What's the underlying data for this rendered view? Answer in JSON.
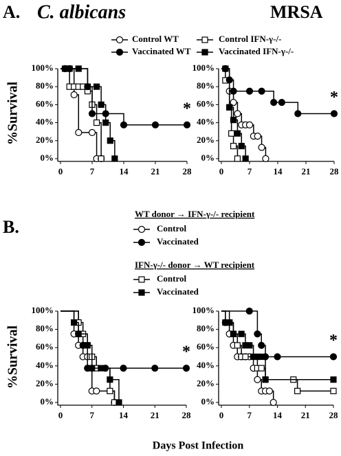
{
  "panels": [
    "A.",
    "B."
  ],
  "shared_xlabel": "Days Post Infection",
  "chart_data": [
    {
      "type": "step",
      "title": "C. albicans",
      "ylabel": "%Survival",
      "annotation": "*",
      "xlim": [
        0,
        28
      ],
      "xticks": [
        0,
        7,
        14,
        21,
        28
      ],
      "ylim": [
        0,
        100
      ],
      "yticks": [
        {
          "value": 0,
          "label": "0%"
        },
        {
          "value": 20,
          "label": "20%"
        },
        {
          "value": 40,
          "label": "40%"
        },
        {
          "value": 60,
          "label": "60%"
        },
        {
          "value": 80,
          "label": "80%"
        },
        {
          "value": 100,
          "label": "100%"
        }
      ],
      "series": [
        {
          "name": "Control WT",
          "color": "black",
          "marker": "circle",
          "filled": false,
          "x": [
            0,
            1,
            2,
            3,
            4,
            7,
            8,
            9
          ],
          "values": [
            100,
            100,
            100,
            71,
            29,
            29,
            0,
            0
          ]
        },
        {
          "name": "Control IFN-γ-/-",
          "color": "black",
          "marker": "square",
          "filled": false,
          "x": [
            0,
            1,
            2,
            3,
            4,
            5,
            6,
            7,
            8,
            9
          ],
          "values": [
            100,
            100,
            80,
            80,
            80,
            80,
            75,
            60,
            40,
            0
          ]
        },
        {
          "name": "Vaccinated WT",
          "color": "black",
          "marker": "circle",
          "filled": true,
          "x": [
            0,
            1,
            2,
            6,
            7,
            10,
            14,
            21,
            28
          ],
          "values": [
            100,
            100,
            100,
            80,
            50,
            50,
            37.5,
            37.5,
            37.5
          ]
        },
        {
          "name": "Vaccinated IFN-γ-/-",
          "color": "black",
          "marker": "square",
          "filled": true,
          "x": [
            0,
            2,
            4,
            6,
            8,
            9,
            10,
            11,
            12
          ],
          "values": [
            100,
            100,
            100,
            80,
            80,
            60,
            40,
            20,
            0
          ]
        }
      ]
    },
    {
      "type": "step",
      "title": "MRSA",
      "annotation": "*",
      "xlim": [
        0,
        28
      ],
      "xticks": [
        0,
        7,
        14,
        21,
        28
      ],
      "ylim": [
        0,
        100
      ],
      "yticks": [
        {
          "value": 0,
          "label": "0%"
        },
        {
          "value": 20,
          "label": "20%"
        },
        {
          "value": 40,
          "label": "40%"
        },
        {
          "value": 60,
          "label": "60%"
        },
        {
          "value": 80,
          "label": "80%"
        },
        {
          "value": 100,
          "label": "100%"
        }
      ],
      "series": [
        {
          "name": "Control WT",
          "color": "black",
          "marker": "circle",
          "filled": false,
          "x": [
            0,
            1,
            2,
            3,
            4,
            5,
            6,
            7,
            8,
            9,
            10,
            11
          ],
          "values": [
            100,
            100,
            75,
            62.5,
            50,
            37.5,
            37.5,
            37.5,
            25,
            25,
            12.5,
            0
          ]
        },
        {
          "name": "Control IFN-γ-/-",
          "color": "black",
          "marker": "square",
          "filled": false,
          "x": [
            0,
            1,
            2,
            2.5,
            3,
            4
          ],
          "values": [
            100,
            87,
            57,
            28,
            14,
            0
          ]
        },
        {
          "name": "Vaccinated WT",
          "color": "black",
          "marker": "circle",
          "filled": true,
          "x": [
            0,
            1,
            2,
            3,
            7,
            10,
            13,
            15,
            19,
            28
          ],
          "values": [
            100,
            100,
            87.5,
            75,
            75,
            75,
            62.5,
            62.5,
            50,
            50
          ]
        },
        {
          "name": "Vaccinated IFN-γ-/-",
          "color": "black",
          "marker": "square",
          "filled": true,
          "x": [
            0,
            1,
            2,
            3,
            4,
            5,
            6
          ],
          "values": [
            100,
            100,
            57,
            43,
            28,
            14,
            0
          ]
        }
      ]
    },
    {
      "type": "step",
      "ylabel": "%Survival",
      "annotation": "*",
      "legend_groups": [
        "WT donor → IFN-γ-/- recipient",
        "IFN-γ-/- donor → WT recipient"
      ],
      "xlim": [
        0,
        28
      ],
      "xticks": [
        0,
        7,
        14,
        21,
        28
      ],
      "ylim": [
        0,
        100
      ],
      "yticks": [
        {
          "value": 0,
          "label": "0%"
        },
        {
          "value": 20,
          "label": "20%"
        },
        {
          "value": 40,
          "label": "40%"
        },
        {
          "value": 60,
          "label": "60%"
        },
        {
          "value": 80,
          "label": "80%"
        },
        {
          "value": 100,
          "label": "100%"
        }
      ],
      "series": [
        {
          "name": "Control",
          "color": "black",
          "marker": "circle",
          "filled": false,
          "x": [
            0,
            3,
            4,
            5,
            6,
            7,
            8,
            12
          ],
          "values": [
            100,
            75,
            62.5,
            50,
            50,
            12.5,
            12.5,
            0
          ]
        },
        {
          "name": "Vaccinated",
          "color": "black",
          "marker": "circle",
          "filled": true,
          "x": [
            0,
            4,
            5,
            6,
            7,
            10,
            14,
            21,
            28
          ],
          "values": [
            100,
            75,
            62.5,
            37.5,
            37.5,
            37.5,
            37.5,
            37.5,
            37.5
          ]
        },
        {
          "name": "Control",
          "color": "black",
          "marker": "square",
          "filled": false,
          "x": [
            0,
            4,
            5,
            6,
            7,
            8,
            11,
            12
          ],
          "values": [
            100,
            87.5,
            75,
            62.5,
            50,
            37.5,
            12.5,
            0
          ]
        },
        {
          "name": "Vaccinated",
          "color": "black",
          "marker": "square",
          "filled": true,
          "x": [
            0,
            3,
            4,
            6,
            7,
            9,
            11,
            13
          ],
          "values": [
            100,
            87.5,
            75,
            62.5,
            37.5,
            37.5,
            25,
            0
          ]
        }
      ]
    },
    {
      "type": "step",
      "annotation": "*",
      "xlim": [
        0,
        28
      ],
      "xticks": [
        0,
        7,
        14,
        21,
        28
      ],
      "ylim": [
        0,
        100
      ],
      "yticks": [
        {
          "value": 0,
          "label": "0%"
        },
        {
          "value": 20,
          "label": "20%"
        },
        {
          "value": 40,
          "label": "40%"
        },
        {
          "value": 60,
          "label": "60%"
        },
        {
          "value": 80,
          "label": "80%"
        },
        {
          "value": 100,
          "label": "100%"
        }
      ],
      "series": [
        {
          "name": "Control",
          "color": "black",
          "marker": "circle",
          "filled": false,
          "x": [
            0,
            1,
            2,
            3,
            4,
            5,
            6,
            7,
            8,
            9,
            10,
            11,
            12,
            13
          ],
          "values": [
            100,
            87.5,
            75,
            62.5,
            50,
            50,
            50,
            50,
            37.5,
            25,
            12.5,
            12.5,
            12.5,
            0
          ]
        },
        {
          "name": "Vaccinated",
          "color": "black",
          "marker": "circle",
          "filled": true,
          "x": [
            0,
            7,
            9,
            10,
            11,
            14,
            28
          ],
          "values": [
            100,
            100,
            75,
            62.5,
            50,
            50,
            50
          ]
        },
        {
          "name": "Control",
          "color": "black",
          "marker": "square",
          "filled": false,
          "x": [
            0,
            2,
            3,
            4,
            5,
            6,
            9,
            10,
            11,
            18,
            19,
            28
          ],
          "values": [
            100,
            87.5,
            75,
            62.5,
            50,
            50,
            37.5,
            37.5,
            25,
            25,
            12.5,
            12.5
          ]
        },
        {
          "name": "Vaccinated",
          "color": "black",
          "marker": "square",
          "filled": true,
          "x": [
            0,
            1,
            2,
            3,
            5,
            6,
            7,
            8,
            9,
            10,
            11,
            28
          ],
          "values": [
            100,
            87.5,
            87.5,
            75,
            75,
            62.5,
            62.5,
            50,
            50,
            50,
            25,
            25
          ]
        }
      ]
    }
  ]
}
